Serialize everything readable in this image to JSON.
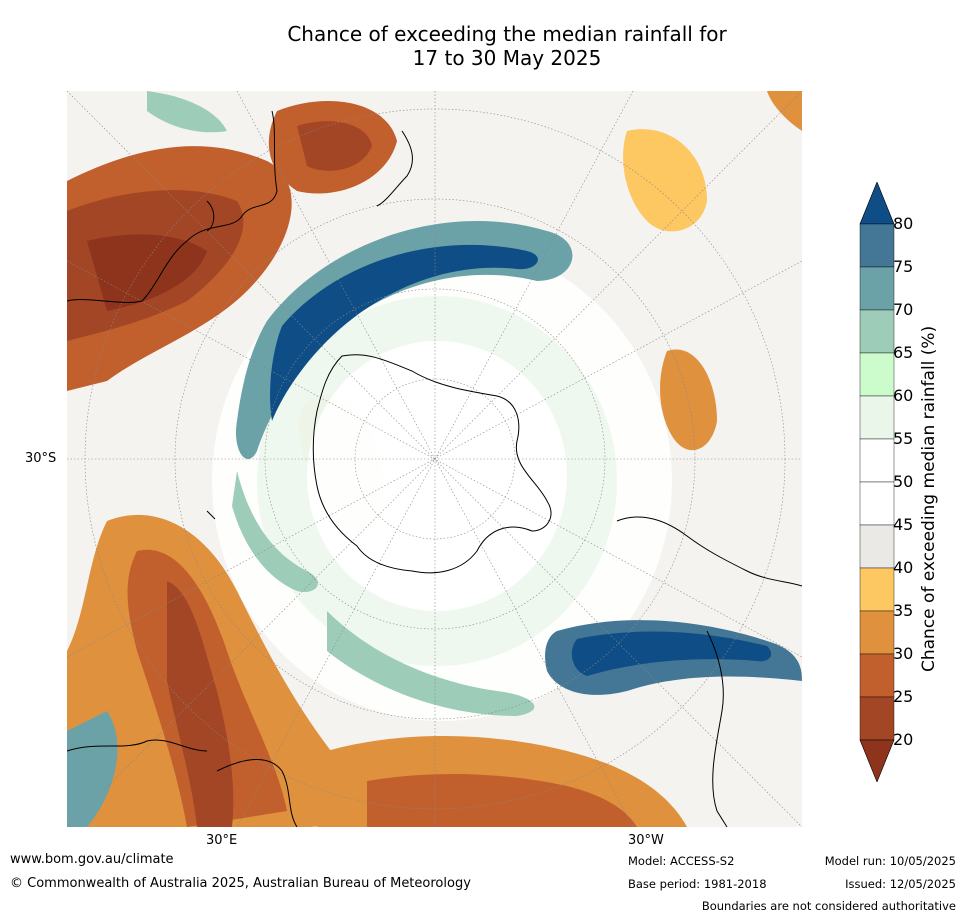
{
  "title_line1": "Chance of exceeding the median rainfall for",
  "title_line2": "17 to 30 May 2025",
  "map": {
    "lat_label": "30°S",
    "lon_labels": [
      "30°E",
      "30°W"
    ]
  },
  "colorbar": {
    "label": "Chance of exceeding median rainfall (%)",
    "ticks": [
      "80",
      "75",
      "70",
      "65",
      "60",
      "55",
      "50",
      "45",
      "40",
      "35",
      "30",
      "25",
      "20"
    ],
    "colors": {
      "over": "#0f4d86",
      "80": "#447795",
      "75": "#6aa2a8",
      "70": "#9dcdb8",
      "65": "#ccfccc",
      "60": "#ebf6ea",
      "55": "#ffffff",
      "50": "#ffffff",
      "45": "#ebe9e6",
      "40": "#fdc762",
      "35": "#df913e",
      "30": "#c2602d",
      "25": "#a34625",
      "under": "#8e341c"
    }
  },
  "footer": {
    "url": "www.bom.gov.au/climate",
    "copyright": "© Commonwealth of Australia 2025, Australian Bureau of Meteorology",
    "model": "Model: ACCESS-S2",
    "base_period": "Base period: 1981-2018",
    "model_run": "Model run: 10/05/2025",
    "issued": "Issued: 12/05/2025",
    "disclaimer": "Boundaries are not considered authoritative"
  }
}
